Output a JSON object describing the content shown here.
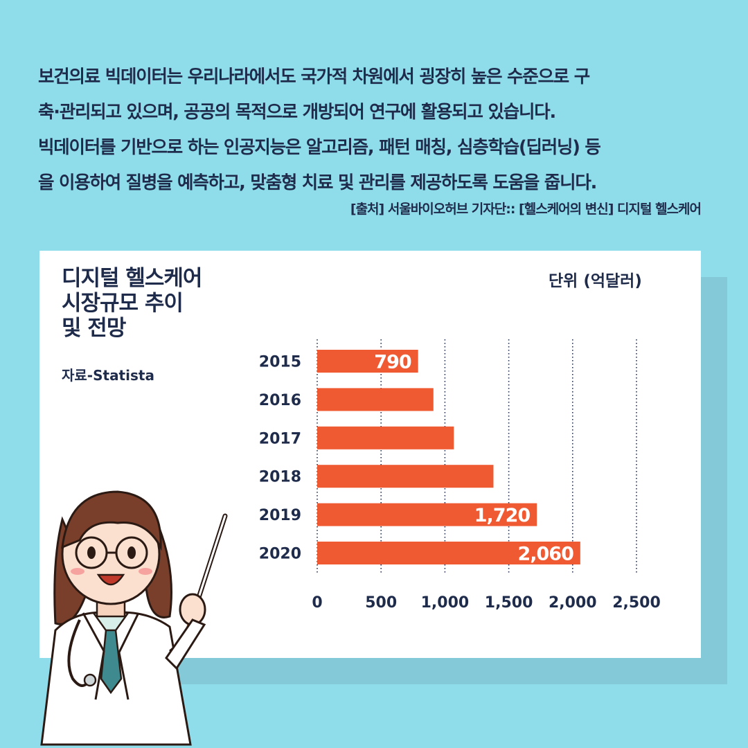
{
  "intro": {
    "lines": [
      "보건의료 빅데이터는 우리나라에서도 국가적 차원에서 굉장히 높은 수준으로 구",
      "축·관리되고 있으며, 공공의 목적으로 개방되어 연구에 활용되고 있습니다.",
      "빅데이터를 기반으로 하는 인공지능은 알고리즘, 패턴 매칭, 심층학습(딥러닝) 등",
      "을 이용하여 질병을 예측하고, 맞춤형 치료 및 관리를 제공하도록 도움을 줍니다."
    ],
    "source": "[출처] 서울바이오허브 기자단:: [헬스케어의 변신] 디지털 헬스케어"
  },
  "chart_header": {
    "title_lines": [
      "디지털 헬스케어",
      "시장규모 추이",
      "및 전망"
    ],
    "subtitle": "자료-Statista",
    "unit": "단위 (억달러)"
  },
  "colors": {
    "background": "#8fdcea",
    "bar": "#f05a32",
    "text": "#1f2b4a",
    "card": "#ffffff"
  },
  "chart_data": {
    "type": "bar",
    "orientation": "horizontal",
    "title": "디지털 헬스케어 시장규모 추이 및 전망",
    "categories": [
      "2015",
      "2016",
      "2017",
      "2018",
      "2019",
      "2020"
    ],
    "values": [
      790,
      910,
      1070,
      1380,
      1720,
      2060
    ],
    "data_labels": [
      "790",
      "",
      "",
      "",
      "1,720",
      "2,060"
    ],
    "xlim": [
      0,
      2500
    ],
    "xticks": [
      0,
      500,
      1000,
      1500,
      2000,
      2500
    ],
    "xtick_labels": [
      "0",
      "500",
      "1,000",
      "1,500",
      "2,000",
      "2,500"
    ],
    "grid": "vertical dotted",
    "bar_color": "#f05a32"
  }
}
